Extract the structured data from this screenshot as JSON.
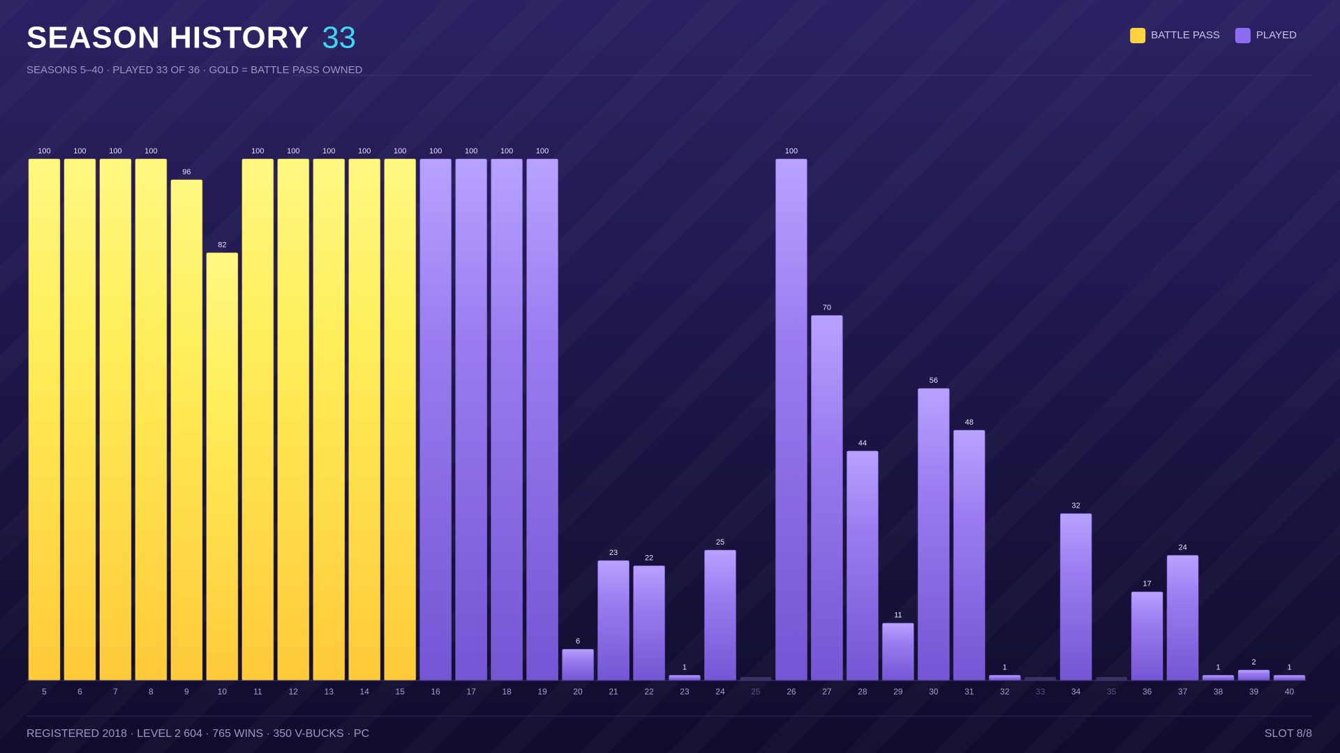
{
  "chart_data": {
    "type": "bar",
    "title": "SEASON HISTORY",
    "played_count": 33,
    "subtitle": "SEASONS 5–40 · PLAYED 33 OF 36 · GOLD = BATTLE PASS OWNED",
    "categories": [
      "5",
      "6",
      "7",
      "8",
      "9",
      "10",
      "11",
      "12",
      "13",
      "14",
      "15",
      "16",
      "17",
      "18",
      "19",
      "20",
      "21",
      "22",
      "23",
      "24",
      "25",
      "26",
      "27",
      "28",
      "29",
      "30",
      "31",
      "32",
      "33",
      "34",
      "35",
      "36",
      "37",
      "38",
      "39",
      "40"
    ],
    "series": [
      {
        "name": "BATTLE PASS",
        "color": "#ffd23f",
        "values": [
          100,
          100,
          100,
          100,
          96,
          82,
          100,
          100,
          100,
          100,
          100,
          null,
          null,
          null,
          null,
          null,
          null,
          null,
          null,
          null,
          null,
          null,
          null,
          null,
          null,
          null,
          null,
          null,
          null,
          null,
          null,
          null,
          null,
          null,
          null,
          null
        ]
      },
      {
        "name": "PLAYED",
        "color": "#8c6cf0",
        "values": [
          null,
          null,
          null,
          null,
          null,
          null,
          null,
          null,
          null,
          null,
          null,
          100,
          100,
          100,
          100,
          6,
          23,
          22,
          1,
          25,
          null,
          100,
          70,
          44,
          11,
          56,
          48,
          1,
          null,
          32,
          null,
          17,
          24,
          1,
          2,
          1
        ]
      }
    ],
    "ylim": [
      0,
      100
    ],
    "legend": "top-right",
    "footer": "REGISTERED 2018 · LEVEL 2 604 · 765 WINS · 350 V-BUCKS · PC",
    "slot": "SLOT 8/8"
  }
}
